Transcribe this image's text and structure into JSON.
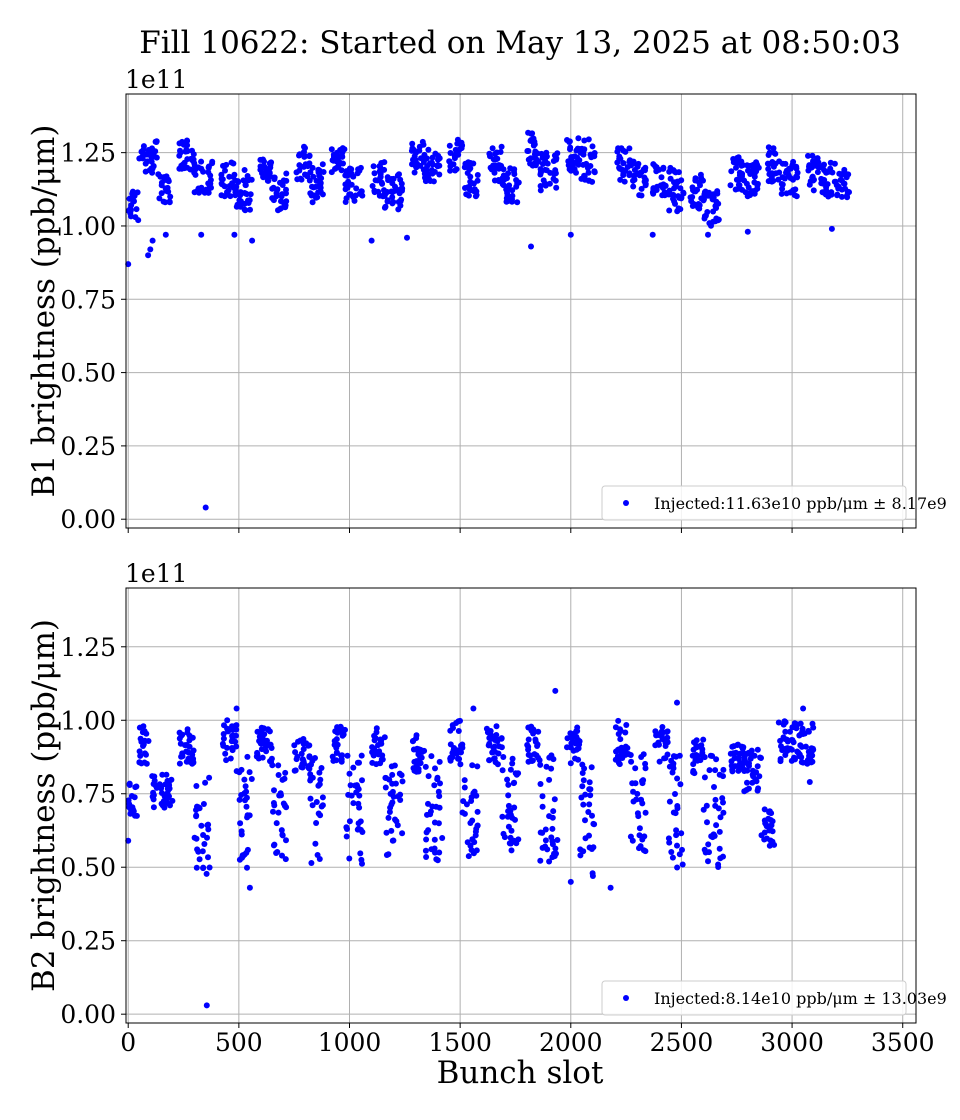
{
  "title": "Fill 10622: Started on May 13, 2025 at 08:50:03",
  "xlabel": "Bunch slot",
  "marker_color": "#0000ff",
  "chart_data": [
    {
      "type": "scatter",
      "ylabel": "B1 brightness (ppb/μm)",
      "y_exponent": "1e11",
      "x_ticks": [
        "0",
        "500",
        "1000",
        "1500",
        "2000",
        "2500",
        "3000",
        "3500"
      ],
      "y_ticks": [
        "0.00",
        "0.25",
        "0.50",
        "0.75",
        "1.00",
        "1.25"
      ],
      "xlim": [
        -10,
        3560
      ],
      "ylim": [
        -0.03,
        1.45
      ],
      "grid": true,
      "legend": {
        "label": "Injected:11.63e10 ppb/μm ± 8.17e9",
        "location": "lower right"
      },
      "trains": [
        [
          0,
          45,
          1.02,
          1.12
        ],
        [
          50,
          130,
          1.18,
          1.3
        ],
        [
          135,
          190,
          1.08,
          1.18
        ],
        [
          230,
          300,
          1.18,
          1.3
        ],
        [
          300,
          380,
          1.1,
          1.22
        ],
        [
          420,
          490,
          1.1,
          1.22
        ],
        [
          490,
          560,
          1.05,
          1.2
        ],
        [
          590,
          650,
          1.15,
          1.23
        ],
        [
          650,
          720,
          1.05,
          1.18
        ],
        [
          760,
          820,
          1.15,
          1.28
        ],
        [
          820,
          890,
          1.08,
          1.22
        ],
        [
          920,
          980,
          1.18,
          1.28
        ],
        [
          980,
          1060,
          1.08,
          1.2
        ],
        [
          1100,
          1160,
          1.1,
          1.22
        ],
        [
          1160,
          1240,
          1.05,
          1.18
        ],
        [
          1280,
          1340,
          1.18,
          1.3
        ],
        [
          1340,
          1410,
          1.15,
          1.26
        ],
        [
          1450,
          1510,
          1.18,
          1.3
        ],
        [
          1510,
          1580,
          1.1,
          1.22
        ],
        [
          1630,
          1690,
          1.15,
          1.27
        ],
        [
          1690,
          1770,
          1.08,
          1.2
        ],
        [
          1800,
          1860,
          1.18,
          1.32
        ],
        [
          1860,
          1940,
          1.12,
          1.25
        ],
        [
          1980,
          2040,
          1.18,
          1.3
        ],
        [
          2040,
          2110,
          1.15,
          1.3
        ],
        [
          2210,
          2270,
          1.15,
          1.28
        ],
        [
          2270,
          2340,
          1.1,
          1.22
        ],
        [
          2370,
          2430,
          1.1,
          1.22
        ],
        [
          2430,
          2510,
          1.05,
          1.2
        ],
        [
          2540,
          2600,
          1.05,
          1.18
        ],
        [
          2600,
          2670,
          1.0,
          1.12
        ],
        [
          2720,
          2780,
          1.12,
          1.24
        ],
        [
          2780,
          2850,
          1.1,
          1.22
        ],
        [
          2890,
          2950,
          1.15,
          1.27
        ],
        [
          2950,
          3030,
          1.1,
          1.22
        ],
        [
          3070,
          3130,
          1.12,
          1.24
        ],
        [
          3130,
          3210,
          1.1,
          1.22
        ],
        [
          3210,
          3260,
          1.08,
          1.2
        ]
      ],
      "outliers": [
        [
          0,
          0.87
        ],
        [
          45,
          1.02
        ],
        [
          90,
          0.9
        ],
        [
          100,
          0.92
        ],
        [
          110,
          0.95
        ],
        [
          170,
          0.97
        ],
        [
          330,
          0.97
        ],
        [
          350,
          0.04
        ],
        [
          480,
          0.97
        ],
        [
          560,
          0.95
        ],
        [
          1100,
          0.95
        ],
        [
          1260,
          0.96
        ],
        [
          1820,
          0.93
        ],
        [
          2000,
          0.97
        ],
        [
          2370,
          0.97
        ],
        [
          2620,
          0.97
        ],
        [
          2800,
          0.98
        ],
        [
          3180,
          0.99
        ]
      ]
    },
    {
      "type": "scatter",
      "ylabel": "B2 brightness (ppb/μm)",
      "y_exponent": "1e11",
      "x_ticks": [
        "0",
        "500",
        "1000",
        "1500",
        "2000",
        "2500",
        "3000",
        "3500"
      ],
      "y_ticks": [
        "0.00",
        "0.25",
        "0.50",
        "0.75",
        "1.00",
        "1.25"
      ],
      "xlim": [
        -10,
        3560
      ],
      "ylim": [
        -0.03,
        1.45
      ],
      "grid": true,
      "legend": {
        "label": "Injected:8.14e10 ppb/μm ± 13.03e9",
        "location": "lower right"
      },
      "trains": [
        [
          0,
          40,
          0.67,
          0.8
        ],
        [
          50,
          100,
          0.85,
          0.98
        ],
        [
          100,
          200,
          0.7,
          0.82
        ],
        [
          230,
          300,
          0.85,
          0.98
        ],
        [
          300,
          370,
          0.45,
          0.82
        ],
        [
          420,
          490,
          0.85,
          1.0
        ],
        [
          490,
          560,
          0.45,
          0.88
        ],
        [
          580,
          650,
          0.85,
          0.98
        ],
        [
          650,
          720,
          0.5,
          0.85
        ],
        [
          750,
          820,
          0.82,
          0.95
        ],
        [
          820,
          880,
          0.5,
          0.88
        ],
        [
          920,
          980,
          0.85,
          0.98
        ],
        [
          980,
          1060,
          0.5,
          0.88
        ],
        [
          1100,
          1160,
          0.85,
          0.98
        ],
        [
          1160,
          1240,
          0.52,
          0.88
        ],
        [
          1280,
          1340,
          0.82,
          0.95
        ],
        [
          1340,
          1420,
          0.52,
          0.88
        ],
        [
          1450,
          1510,
          0.85,
          1.0
        ],
        [
          1510,
          1580,
          0.52,
          0.88
        ],
        [
          1620,
          1690,
          0.85,
          0.98
        ],
        [
          1690,
          1770,
          0.55,
          0.88
        ],
        [
          1800,
          1860,
          0.85,
          1.0
        ],
        [
          1860,
          1940,
          0.5,
          0.9
        ],
        [
          1980,
          2040,
          0.85,
          0.98
        ],
        [
          2040,
          2110,
          0.45,
          0.88
        ],
        [
          2200,
          2260,
          0.85,
          1.0
        ],
        [
          2260,
          2340,
          0.55,
          0.9
        ],
        [
          2380,
          2440,
          0.85,
          0.98
        ],
        [
          2440,
          2510,
          0.47,
          0.88
        ],
        [
          2550,
          2600,
          0.82,
          0.95
        ],
        [
          2600,
          2690,
          0.5,
          0.88
        ],
        [
          2720,
          2780,
          0.82,
          0.92
        ],
        [
          2780,
          2860,
          0.75,
          0.9
        ],
        [
          2860,
          2920,
          0.57,
          0.7
        ],
        [
          2940,
          3100,
          0.85,
          1.0
        ]
      ],
      "outliers": [
        [
          0,
          0.59
        ],
        [
          355,
          0.03
        ],
        [
          550,
          0.43
        ],
        [
          1930,
          1.1
        ],
        [
          2000,
          0.45
        ],
        [
          2480,
          1.06
        ],
        [
          2180,
          0.43
        ],
        [
          1560,
          1.04
        ],
        [
          490,
          1.04
        ],
        [
          3050,
          1.04
        ],
        [
          3080,
          0.79
        ]
      ]
    }
  ]
}
